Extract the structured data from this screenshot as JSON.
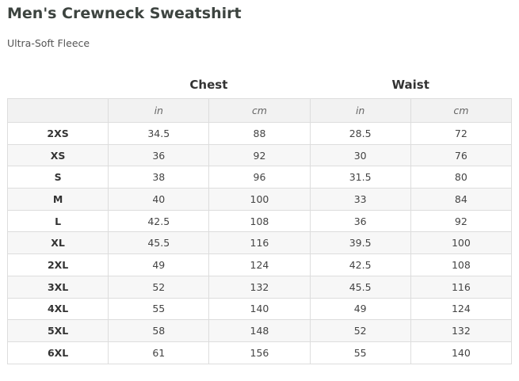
{
  "header": {
    "title": "Men's Crewneck Sweatshirt",
    "subtitle": "Ultra-Soft Fleece"
  },
  "table": {
    "groups": [
      "Chest",
      "Waist"
    ],
    "units": [
      "in",
      "cm",
      "in",
      "cm"
    ],
    "rows": [
      [
        "2XS",
        34.5,
        88,
        28.5,
        72
      ],
      [
        "XS",
        36,
        92,
        30,
        76
      ],
      [
        "S",
        38,
        96,
        31.5,
        80
      ],
      [
        "M",
        40,
        100,
        33,
        84
      ],
      [
        "L",
        42.5,
        108,
        36,
        92
      ],
      [
        "XL",
        45.5,
        116,
        39.5,
        100
      ],
      [
        "2XL",
        49,
        124,
        42.5,
        108
      ],
      [
        "3XL",
        52,
        132,
        45.5,
        116
      ],
      [
        "4XL",
        55,
        140,
        49,
        124
      ],
      [
        "5XL",
        58,
        148,
        52,
        132
      ],
      [
        "6XL",
        61,
        156,
        55,
        140
      ]
    ]
  }
}
